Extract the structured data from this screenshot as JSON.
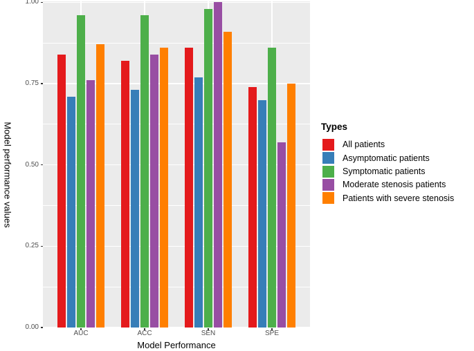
{
  "chart_data": {
    "type": "bar",
    "title": "",
    "xlabel": "Model Performance",
    "ylabel": "Model performance values",
    "categories": [
      "AUC",
      "ACC",
      "SEN",
      "SPE"
    ],
    "series": [
      {
        "name": "All patients",
        "color": "#E41A1C",
        "values": [
          0.84,
          0.82,
          0.86,
          0.74
        ]
      },
      {
        "name": "Asymptomatic patients",
        "color": "#377EB8",
        "values": [
          0.71,
          0.73,
          0.77,
          0.7
        ]
      },
      {
        "name": "Symptomatic patients",
        "color": "#4DAF4A",
        "values": [
          0.96,
          0.96,
          0.98,
          0.86
        ]
      },
      {
        "name": "Moderate stenosis patients",
        "color": "#984EA3",
        "values": [
          0.76,
          0.84,
          1.0,
          0.57
        ]
      },
      {
        "name": "Patients with severe stenosis",
        "color": "#FF7F00",
        "values": [
          0.87,
          0.86,
          0.91,
          0.75
        ]
      }
    ],
    "ylim": [
      0,
      1
    ],
    "yticks": [
      0.0,
      0.25,
      0.5,
      0.75,
      1.0
    ],
    "ytick_labels": [
      "0.00",
      "0.25",
      "0.50",
      "0.75",
      "1.00"
    ],
    "minor_yticks": [
      0.125,
      0.375,
      0.625,
      0.875
    ],
    "legend_title": "Types",
    "legend_position": "right",
    "grid": "on",
    "panel_bg": "#EBEBEB",
    "grid_color": "#FFFFFF",
    "tick_label_color": "#4D4D4D"
  }
}
